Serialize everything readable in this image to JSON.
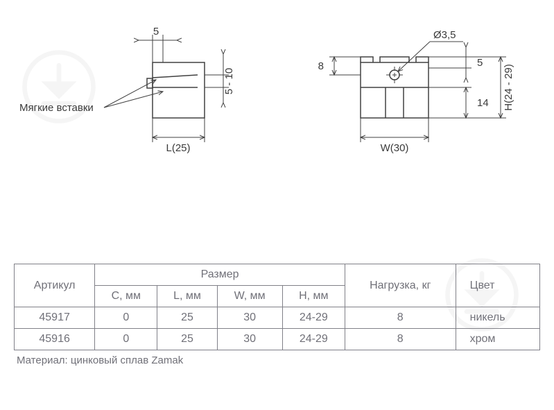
{
  "drawing": {
    "left_view": {
      "dim_top": "5",
      "dim_slot": "5 - 10",
      "dim_width": "L(25)",
      "callout": "Мягкие вставки"
    },
    "right_view": {
      "dim_diameter": "Ø3,5",
      "dim_8": "8",
      "dim_5": "5",
      "dim_14": "14",
      "dim_height": "H(24 - 29)",
      "dim_width": "W(30)"
    }
  },
  "table": {
    "headers": {
      "article": "Артикул",
      "size": "Размер",
      "load": "Нагрузка, кг",
      "color": "Цвет",
      "c": "C, мм",
      "l": "L, мм",
      "w": "W, мм",
      "h": "H, мм"
    },
    "rows": [
      {
        "article": "45917",
        "c": "0",
        "l": "25",
        "w": "30",
        "h": "24-29",
        "load": "8",
        "color": "никель"
      },
      {
        "article": "45916",
        "c": "0",
        "l": "25",
        "w": "30",
        "h": "24-29",
        "load": "8",
        "color": "хром"
      }
    ],
    "material": "Материал: цинковый сплав Zamak"
  },
  "watermark": {
    "stroke": "#b0b0b0"
  }
}
